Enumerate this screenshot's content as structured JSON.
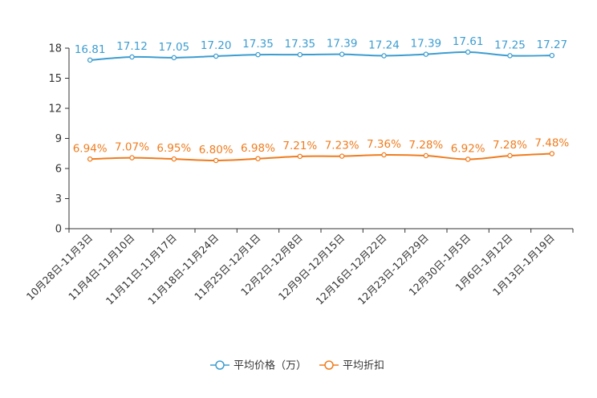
{
  "chart_data": {
    "type": "line",
    "title": "",
    "xlabel": "",
    "ylabel": "",
    "ylim": [
      0,
      18
    ],
    "yticks": [
      0,
      3,
      6,
      9,
      12,
      15,
      18
    ],
    "grid": false,
    "legend_position": "bottom-center",
    "categories": [
      "10月28日-11月3日",
      "11月4日-11月10日",
      "11月11日-11月17日",
      "11月18日-11月24日",
      "11月25日-12月1日",
      "12月2日-12月8日",
      "12月9日-12月15日",
      "12月16日-12月22日",
      "12月23日-12月29日",
      "12月30日-1月5日",
      "1月6日-1月12日",
      "1月13日-1月19日"
    ],
    "series": [
      {
        "name": "平均价格（万）",
        "color": "#3d9dd0",
        "values": [
          16.81,
          17.12,
          17.05,
          17.2,
          17.35,
          17.35,
          17.39,
          17.24,
          17.39,
          17.61,
          17.25,
          17.27
        ],
        "labels": [
          "16.81",
          "17.12",
          "17.05",
          "17.20",
          "17.35",
          "17.35",
          "17.39",
          "17.24",
          "17.39",
          "17.61",
          "17.25",
          "17.27"
        ]
      },
      {
        "name": "平均折扣",
        "color": "#f07c1e",
        "values": [
          6.94,
          7.07,
          6.95,
          6.8,
          6.98,
          7.21,
          7.23,
          7.36,
          7.28,
          6.92,
          7.28,
          7.48
        ],
        "labels": [
          "6.94%",
          "7.07%",
          "6.95%",
          "6.80%",
          "6.98%",
          "7.21%",
          "7.23%",
          "7.36%",
          "7.28%",
          "6.92%",
          "7.28%",
          "7.48%"
        ]
      }
    ]
  }
}
